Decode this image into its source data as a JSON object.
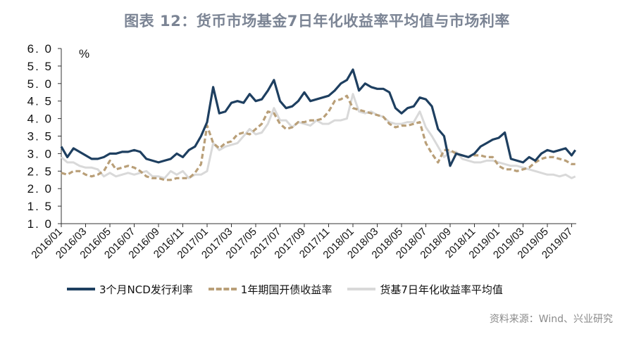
{
  "title": "图表 12：货币市场基金7日年化收益率平均值与市场利率",
  "source": "资料来源：Wind、兴业研究",
  "colors": {
    "ncd": "#1e3f60",
    "bond": "#b99f78",
    "mmf": "#d9d9d9",
    "title": "#7b8494"
  },
  "chart_data": {
    "type": "line",
    "title": "货币市场基金7日年化收益率平均值与市场利率",
    "ylabel": "%",
    "xlabel": "",
    "ylim": [
      1.0,
      6.0
    ],
    "yticks": [
      "6.0",
      "5.5",
      "5.0",
      "4.5",
      "4.0",
      "3.5",
      "3.0",
      "2.5",
      "2.0",
      "1.5",
      "1.0"
    ],
    "xticks": [
      "2016/01",
      "2016/03",
      "2016/05",
      "2016/07",
      "2016/09",
      "2016/11",
      "2017/01",
      "2017/03",
      "2017/05",
      "2017/07",
      "2017/09",
      "2017/11",
      "2018/01",
      "2018/03",
      "2018/05",
      "2018/07",
      "2018/09",
      "2018/11",
      "2019/01",
      "2019/03",
      "2019/05",
      "2019/07"
    ],
    "grid": false,
    "legend_position": "bottom",
    "x_unit": "months since 2016/01",
    "series": [
      {
        "name": "3个月NCD发行利率",
        "style": "solid",
        "x": [
          0,
          0.5,
          1,
          1.5,
          2,
          2.5,
          3,
          3.5,
          4,
          4.5,
          5,
          5.5,
          6,
          6.5,
          7,
          7.5,
          8,
          8.5,
          9,
          9.5,
          10,
          10.5,
          11,
          11.5,
          12,
          12.5,
          13,
          13.5,
          14,
          14.5,
          15,
          15.5,
          16,
          16.5,
          17,
          17.5,
          18,
          18.5,
          19,
          19.5,
          20,
          20.5,
          21,
          21.5,
          22,
          22.5,
          23,
          23.5,
          24,
          24.5,
          25,
          25.5,
          26,
          26.5,
          27,
          27.5,
          28,
          28.5,
          29,
          29.5,
          30,
          30.5,
          31,
          31.5,
          32,
          32.5,
          33,
          33.5,
          34,
          34.5,
          35,
          35.5,
          36,
          36.5,
          37,
          37.5,
          38,
          38.5,
          39,
          39.5,
          40,
          40.5,
          41,
          41.5,
          42,
          42.3
        ],
        "values": [
          3.2,
          2.9,
          3.15,
          3.05,
          2.95,
          2.85,
          2.85,
          2.9,
          3.0,
          3.0,
          3.05,
          3.05,
          3.1,
          3.05,
          2.85,
          2.8,
          2.75,
          2.8,
          2.85,
          3.0,
          2.9,
          3.1,
          3.2,
          3.5,
          3.9,
          4.9,
          4.15,
          4.2,
          4.45,
          4.5,
          4.45,
          4.7,
          4.5,
          4.55,
          4.8,
          5.1,
          4.5,
          4.3,
          4.35,
          4.5,
          4.75,
          4.5,
          4.55,
          4.6,
          4.65,
          4.8,
          5.0,
          5.1,
          5.4,
          4.8,
          5.0,
          4.9,
          4.85,
          4.85,
          4.75,
          4.3,
          4.15,
          4.3,
          4.35,
          4.6,
          4.55,
          4.35,
          3.7,
          3.5,
          2.65,
          3.0,
          2.95,
          2.9,
          3.0,
          3.2,
          3.3,
          3.4,
          3.45,
          3.6,
          2.85,
          2.8,
          2.75,
          2.9,
          2.8,
          3.0,
          3.1,
          3.05,
          3.1,
          3.15,
          2.95,
          3.1
        ]
      },
      {
        "name": "1年期国开债收益率",
        "style": "dashed",
        "x": [
          0,
          0.5,
          1,
          1.5,
          2,
          2.5,
          3,
          3.5,
          4,
          4.5,
          5,
          5.5,
          6,
          6.5,
          7,
          7.5,
          8,
          8.5,
          9,
          9.5,
          10,
          10.5,
          11,
          11.5,
          12,
          12.5,
          13,
          13.5,
          14,
          14.5,
          15,
          15.5,
          16,
          16.5,
          17,
          17.5,
          18,
          18.5,
          19,
          19.5,
          20,
          20.5,
          21,
          21.5,
          22,
          22.5,
          23,
          23.5,
          24,
          24.5,
          25,
          25.5,
          26,
          26.5,
          27,
          27.5,
          28,
          28.5,
          29,
          29.5,
          30,
          30.5,
          31,
          31.5,
          32,
          32.5,
          33,
          33.5,
          34,
          34.5,
          35,
          35.5,
          36,
          36.5,
          37,
          37.5,
          38,
          38.5,
          39,
          39.5,
          40,
          40.5,
          41,
          41.5,
          42,
          42.3
        ],
        "values": [
          2.45,
          2.4,
          2.5,
          2.5,
          2.4,
          2.35,
          2.4,
          2.5,
          2.8,
          2.55,
          2.6,
          2.65,
          2.6,
          2.5,
          2.35,
          2.3,
          2.3,
          2.25,
          2.25,
          2.3,
          2.3,
          2.3,
          2.45,
          2.7,
          3.8,
          3.3,
          3.15,
          3.3,
          3.35,
          3.55,
          3.6,
          3.55,
          3.7,
          3.85,
          4.2,
          4.15,
          3.85,
          3.7,
          3.75,
          3.9,
          3.9,
          3.95,
          3.95,
          4.0,
          4.2,
          4.5,
          4.55,
          4.65,
          4.3,
          4.25,
          4.2,
          4.15,
          4.1,
          4.05,
          3.85,
          3.75,
          3.8,
          3.8,
          3.85,
          3.9,
          3.3,
          3.0,
          2.75,
          3.1,
          3.1,
          3.0,
          2.95,
          2.9,
          2.95,
          2.95,
          2.9,
          2.9,
          2.65,
          2.55,
          2.55,
          2.5,
          2.55,
          2.6,
          2.75,
          2.85,
          2.9,
          2.9,
          2.85,
          2.8,
          2.7,
          2.7
        ]
      },
      {
        "name": "货基7日年化收益率平均值",
        "style": "solid-light",
        "x": [
          0,
          0.5,
          1,
          1.5,
          2,
          2.5,
          3,
          3.5,
          4,
          4.5,
          5,
          5.5,
          6,
          6.5,
          7,
          7.5,
          8,
          8.5,
          9,
          9.5,
          10,
          10.5,
          11,
          11.5,
          12,
          12.5,
          13,
          13.5,
          14,
          14.5,
          15,
          15.5,
          16,
          16.5,
          17,
          17.5,
          18,
          18.5,
          19,
          19.5,
          20,
          20.5,
          21,
          21.5,
          22,
          22.5,
          23,
          23.5,
          24,
          24.5,
          25,
          25.5,
          26,
          26.5,
          27,
          27.5,
          28,
          28.5,
          29,
          29.5,
          30,
          30.5,
          31,
          31.5,
          32,
          32.5,
          33,
          33.5,
          34,
          34.5,
          35,
          35.5,
          36,
          36.5,
          37,
          37.5,
          38,
          38.5,
          39,
          39.5,
          40,
          40.5,
          41,
          41.5,
          42,
          42.3
        ],
        "values": [
          2.9,
          2.75,
          2.75,
          2.65,
          2.6,
          2.6,
          2.55,
          2.35,
          2.45,
          2.35,
          2.4,
          2.45,
          2.4,
          2.45,
          2.5,
          2.35,
          2.35,
          2.3,
          2.5,
          2.4,
          2.5,
          2.3,
          2.4,
          2.4,
          2.5,
          3.3,
          3.1,
          3.2,
          3.25,
          3.3,
          3.5,
          3.7,
          3.55,
          3.6,
          3.85,
          4.3,
          3.95,
          3.95,
          3.75,
          3.9,
          3.85,
          3.8,
          3.95,
          3.85,
          3.85,
          3.95,
          3.95,
          4.0,
          4.7,
          4.2,
          4.15,
          4.2,
          4.1,
          4.05,
          3.9,
          3.85,
          3.85,
          3.9,
          3.9,
          4.2,
          3.75,
          3.5,
          3.2,
          2.9,
          3.05,
          3.05,
          2.85,
          2.8,
          2.75,
          2.75,
          2.8,
          2.8,
          2.75,
          2.7,
          2.65,
          2.65,
          2.6,
          2.55,
          2.5,
          2.45,
          2.4,
          2.4,
          2.35,
          2.4,
          2.3,
          2.35
        ]
      }
    ]
  }
}
